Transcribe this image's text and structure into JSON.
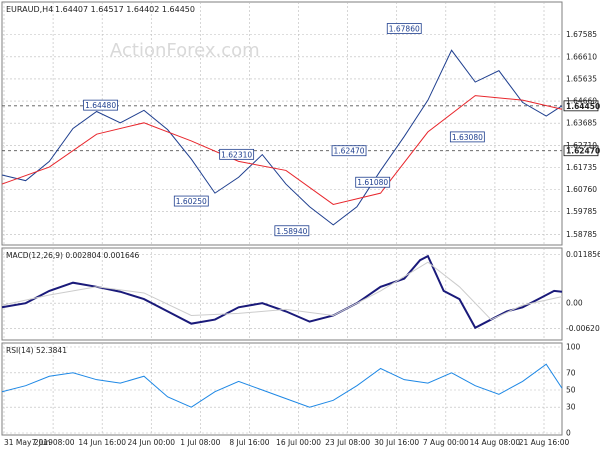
{
  "header": {
    "symbol": "EURAUD,H4",
    "ohlc": "1.64407 1.64517 1.64402 1.64450",
    "watermark": "ActionForex.com"
  },
  "chart_data": [
    {
      "type": "line",
      "title": "EURAUD,H4",
      "x_tick_labels": [
        "31 May 2019",
        "7 Jun 08:00",
        "14 Jun 16:00",
        "24 Jun 00:00",
        "1 Jul 08:00",
        "8 Jul 16:00",
        "16 Jul 00:00",
        "23 Jul 08:00",
        "30 Jul 16:00",
        "7 Aug 00:00",
        "14 Aug 08:00",
        "21 Aug 16:00"
      ],
      "y_tick_labels": [
        "1.67585",
        "1.66610",
        "1.65635",
        "1.64660",
        "1.63685",
        "1.62710",
        "1.61735",
        "1.60760",
        "1.59785",
        "1.58785"
      ],
      "ylim": [
        1.584,
        1.685
      ],
      "grid": true,
      "series": [
        {
          "name": "Price",
          "color": "#1f3f8f",
          "x": [
            0,
            12,
            24,
            36,
            48,
            60,
            72,
            84,
            96,
            108,
            120,
            132,
            144,
            156,
            168,
            180,
            192,
            204,
            216,
            228,
            240,
            252,
            264,
            276,
            284
          ],
          "values": [
            1.614,
            1.6115,
            1.62,
            1.6345,
            1.642,
            1.637,
            1.6425,
            1.634,
            1.621,
            1.606,
            1.613,
            1.623,
            1.61,
            1.6,
            1.592,
            1.6,
            1.616,
            1.631,
            1.647,
            1.669,
            1.655,
            1.66,
            1.646,
            1.64,
            1.6445
          ]
        },
        {
          "name": "MA",
          "color": "#e8262c",
          "x": [
            0,
            24,
            48,
            72,
            96,
            120,
            144,
            168,
            192,
            216,
            240,
            264,
            284
          ],
          "values": [
            1.61,
            1.6175,
            1.632,
            1.637,
            1.629,
            1.62,
            1.616,
            1.601,
            1.606,
            1.633,
            1.649,
            1.647,
            1.643
          ]
        }
      ],
      "horizontal_levels": [
        {
          "value": 1.6445,
          "tag": "1.64450"
        },
        {
          "value": 1.6247,
          "tag": "1.62470"
        }
      ],
      "annotations": [
        {
          "text": "1.64480",
          "x": 50,
          "y": 1.6448
        },
        {
          "text": "1.60250",
          "x": 96,
          "y": 1.6025
        },
        {
          "text": "1.62310",
          "x": 119,
          "y": 1.6231
        },
        {
          "text": "1.58940",
          "x": 147,
          "y": 1.5894
        },
        {
          "text": "1.62470",
          "x": 176,
          "y": 1.6247
        },
        {
          "text": "1.61080",
          "x": 188,
          "y": 1.6108
        },
        {
          "text": "1.67860",
          "x": 204,
          "y": 1.6786
        },
        {
          "text": "1.63080",
          "x": 236,
          "y": 1.6308
        }
      ]
    },
    {
      "type": "line",
      "title": "MACD(12,26,9) 0.002804 0.001646",
      "y_tick_labels": [
        "0.011856",
        "0.00",
        "-0.006206"
      ],
      "ylim": [
        -0.0085,
        0.0125
      ],
      "series": [
        {
          "name": "MACD",
          "color": "#1a1a7a",
          "x": [
            0,
            12,
            24,
            36,
            48,
            60,
            72,
            84,
            96,
            108,
            120,
            132,
            144,
            156,
            168,
            180,
            192,
            204,
            212,
            216,
            224,
            232,
            240,
            248,
            256,
            264,
            272,
            280,
            284
          ],
          "values": [
            -0.001,
            0.0,
            0.003,
            0.005,
            0.004,
            0.0028,
            0.001,
            -0.002,
            -0.005,
            -0.004,
            -0.001,
            0.0,
            -0.002,
            -0.0045,
            -0.003,
            0.0,
            0.004,
            0.006,
            0.0105,
            0.0115,
            0.003,
            0.001,
            -0.006,
            -0.004,
            -0.002,
            -0.001,
            0.001,
            0.003,
            0.0028
          ]
        },
        {
          "name": "Signal",
          "color": "#cccccc",
          "x": [
            0,
            24,
            48,
            72,
            96,
            120,
            144,
            168,
            192,
            216,
            232,
            248,
            264,
            284
          ],
          "values": [
            -0.0005,
            0.002,
            0.004,
            0.0025,
            -0.003,
            -0.0025,
            -0.0015,
            -0.003,
            0.003,
            0.01,
            0.004,
            -0.004,
            -0.0005,
            0.0016
          ]
        }
      ]
    },
    {
      "type": "line",
      "title": "RSI(14) 52.3841",
      "y_tick_labels": [
        "100",
        "70",
        "50",
        "30",
        "0"
      ],
      "ylim": [
        0,
        100
      ],
      "series": [
        {
          "name": "RSI",
          "color": "#1e88e5",
          "x": [
            0,
            12,
            24,
            36,
            48,
            60,
            72,
            84,
            96,
            108,
            120,
            132,
            144,
            156,
            168,
            180,
            192,
            204,
            216,
            228,
            240,
            252,
            264,
            276,
            284
          ],
          "values": [
            48,
            55,
            66,
            70,
            62,
            58,
            66,
            42,
            30,
            48,
            60,
            50,
            40,
            30,
            38,
            55,
            75,
            62,
            58,
            70,
            55,
            45,
            60,
            80,
            52
          ]
        }
      ]
    }
  ]
}
